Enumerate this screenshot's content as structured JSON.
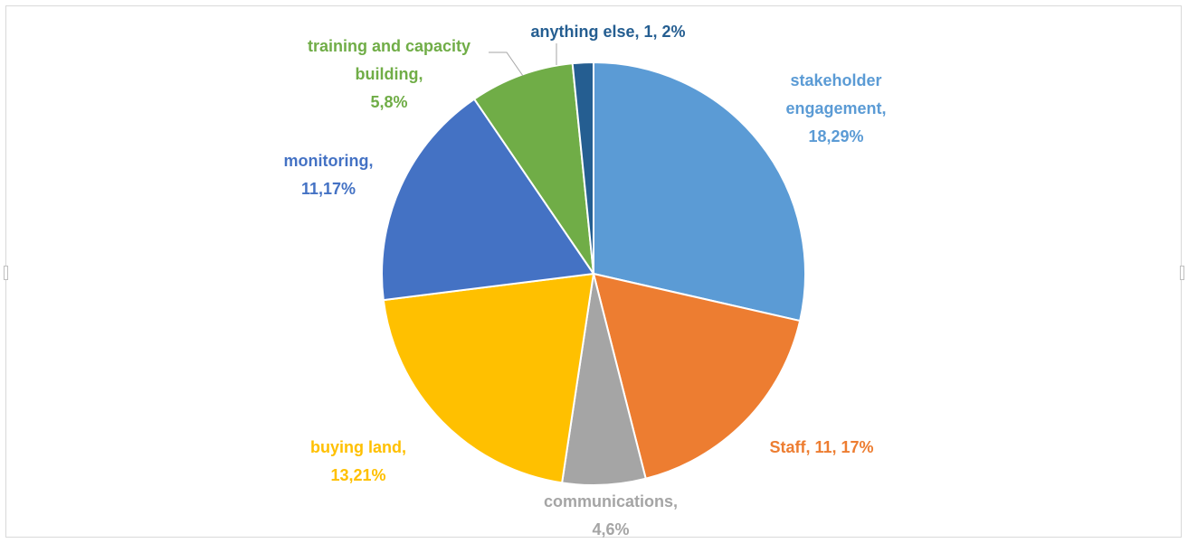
{
  "chart_data": {
    "type": "pie",
    "title": "",
    "slices": [
      {
        "category": "stakeholder engagement",
        "value": 18,
        "percent": 29,
        "color": "#5B9BD5",
        "label_lines": [
          "stakeholder",
          "engagement,",
          "18,29%"
        ]
      },
      {
        "category": "Staff",
        "value": 11,
        "percent": 17,
        "color": "#ED7D31",
        "label_lines": [
          "Staff, 11, 17%"
        ]
      },
      {
        "category": "communications",
        "value": 4,
        "percent": 6,
        "color": "#A5A5A5",
        "label_lines": [
          "communications,",
          "4,6%"
        ]
      },
      {
        "category": "buying land",
        "value": 13,
        "percent": 21,
        "color": "#FFC000",
        "label_lines": [
          "buying land,",
          "13,21%"
        ]
      },
      {
        "category": "monitoring",
        "value": 11,
        "percent": 17,
        "color": "#4472C4",
        "label_lines": [
          "monitoring,",
          "11,17%"
        ]
      },
      {
        "category": "training and capacity building",
        "value": 5,
        "percent": 8,
        "color": "#70AD47",
        "label_lines": [
          "training and capacity",
          "building,",
          "5,8%"
        ]
      },
      {
        "category": "anything else",
        "value": 1,
        "percent": 2,
        "color": "#255E91",
        "label_lines": [
          "anything else, 1, 2%"
        ]
      }
    ]
  }
}
